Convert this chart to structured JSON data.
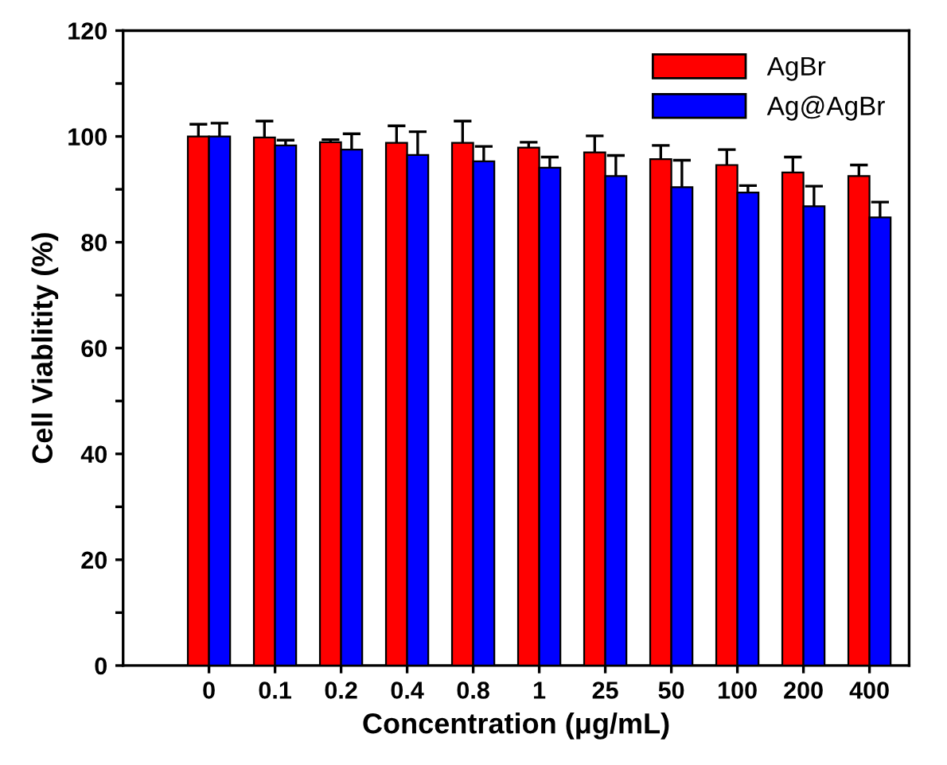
{
  "chart_data": {
    "type": "bar",
    "xlabel": "Concentration (μg/mL)",
    "ylabel": "Cell Viablitity (%)",
    "categories": [
      "0",
      "0.1",
      "0.2",
      "0.4",
      "0.8",
      "1",
      "25",
      "50",
      "100",
      "200",
      "400"
    ],
    "series": [
      {
        "name": "AgBr",
        "color": "#ff0000",
        "values": [
          100,
          99.8,
          98.9,
          98.8,
          98.8,
          97.9,
          97,
          95.7,
          94.6,
          93.2,
          92.5
        ],
        "errors": [
          2.3,
          3.1,
          0.5,
          3.2,
          4.1,
          1.0,
          3.1,
          2.6,
          2.9,
          2.9,
          2.1
        ]
      },
      {
        "name": "Ag@AgBr",
        "color": "#0000ff",
        "values": [
          100,
          98.3,
          97.5,
          96.5,
          95.3,
          94.1,
          92.5,
          90.4,
          89.4,
          86.8,
          84.7
        ],
        "errors": [
          2.5,
          1.0,
          3.0,
          4.4,
          2.8,
          2.0,
          3.9,
          5.1,
          1.3,
          3.8,
          2.9
        ]
      }
    ],
    "ylim": [
      0,
      120
    ],
    "yticks": [
      0,
      {
        "value": 10,
        "label": null
      },
      20,
      {
        "value": 30,
        "label": null
      },
      40,
      {
        "value": 50,
        "label": null
      },
      60,
      {
        "value": 70,
        "label": null
      },
      80,
      {
        "value": 90,
        "label": null
      },
      100,
      {
        "value": 110,
        "label": null
      },
      120
    ],
    "grid": false,
    "legend": "top right"
  }
}
